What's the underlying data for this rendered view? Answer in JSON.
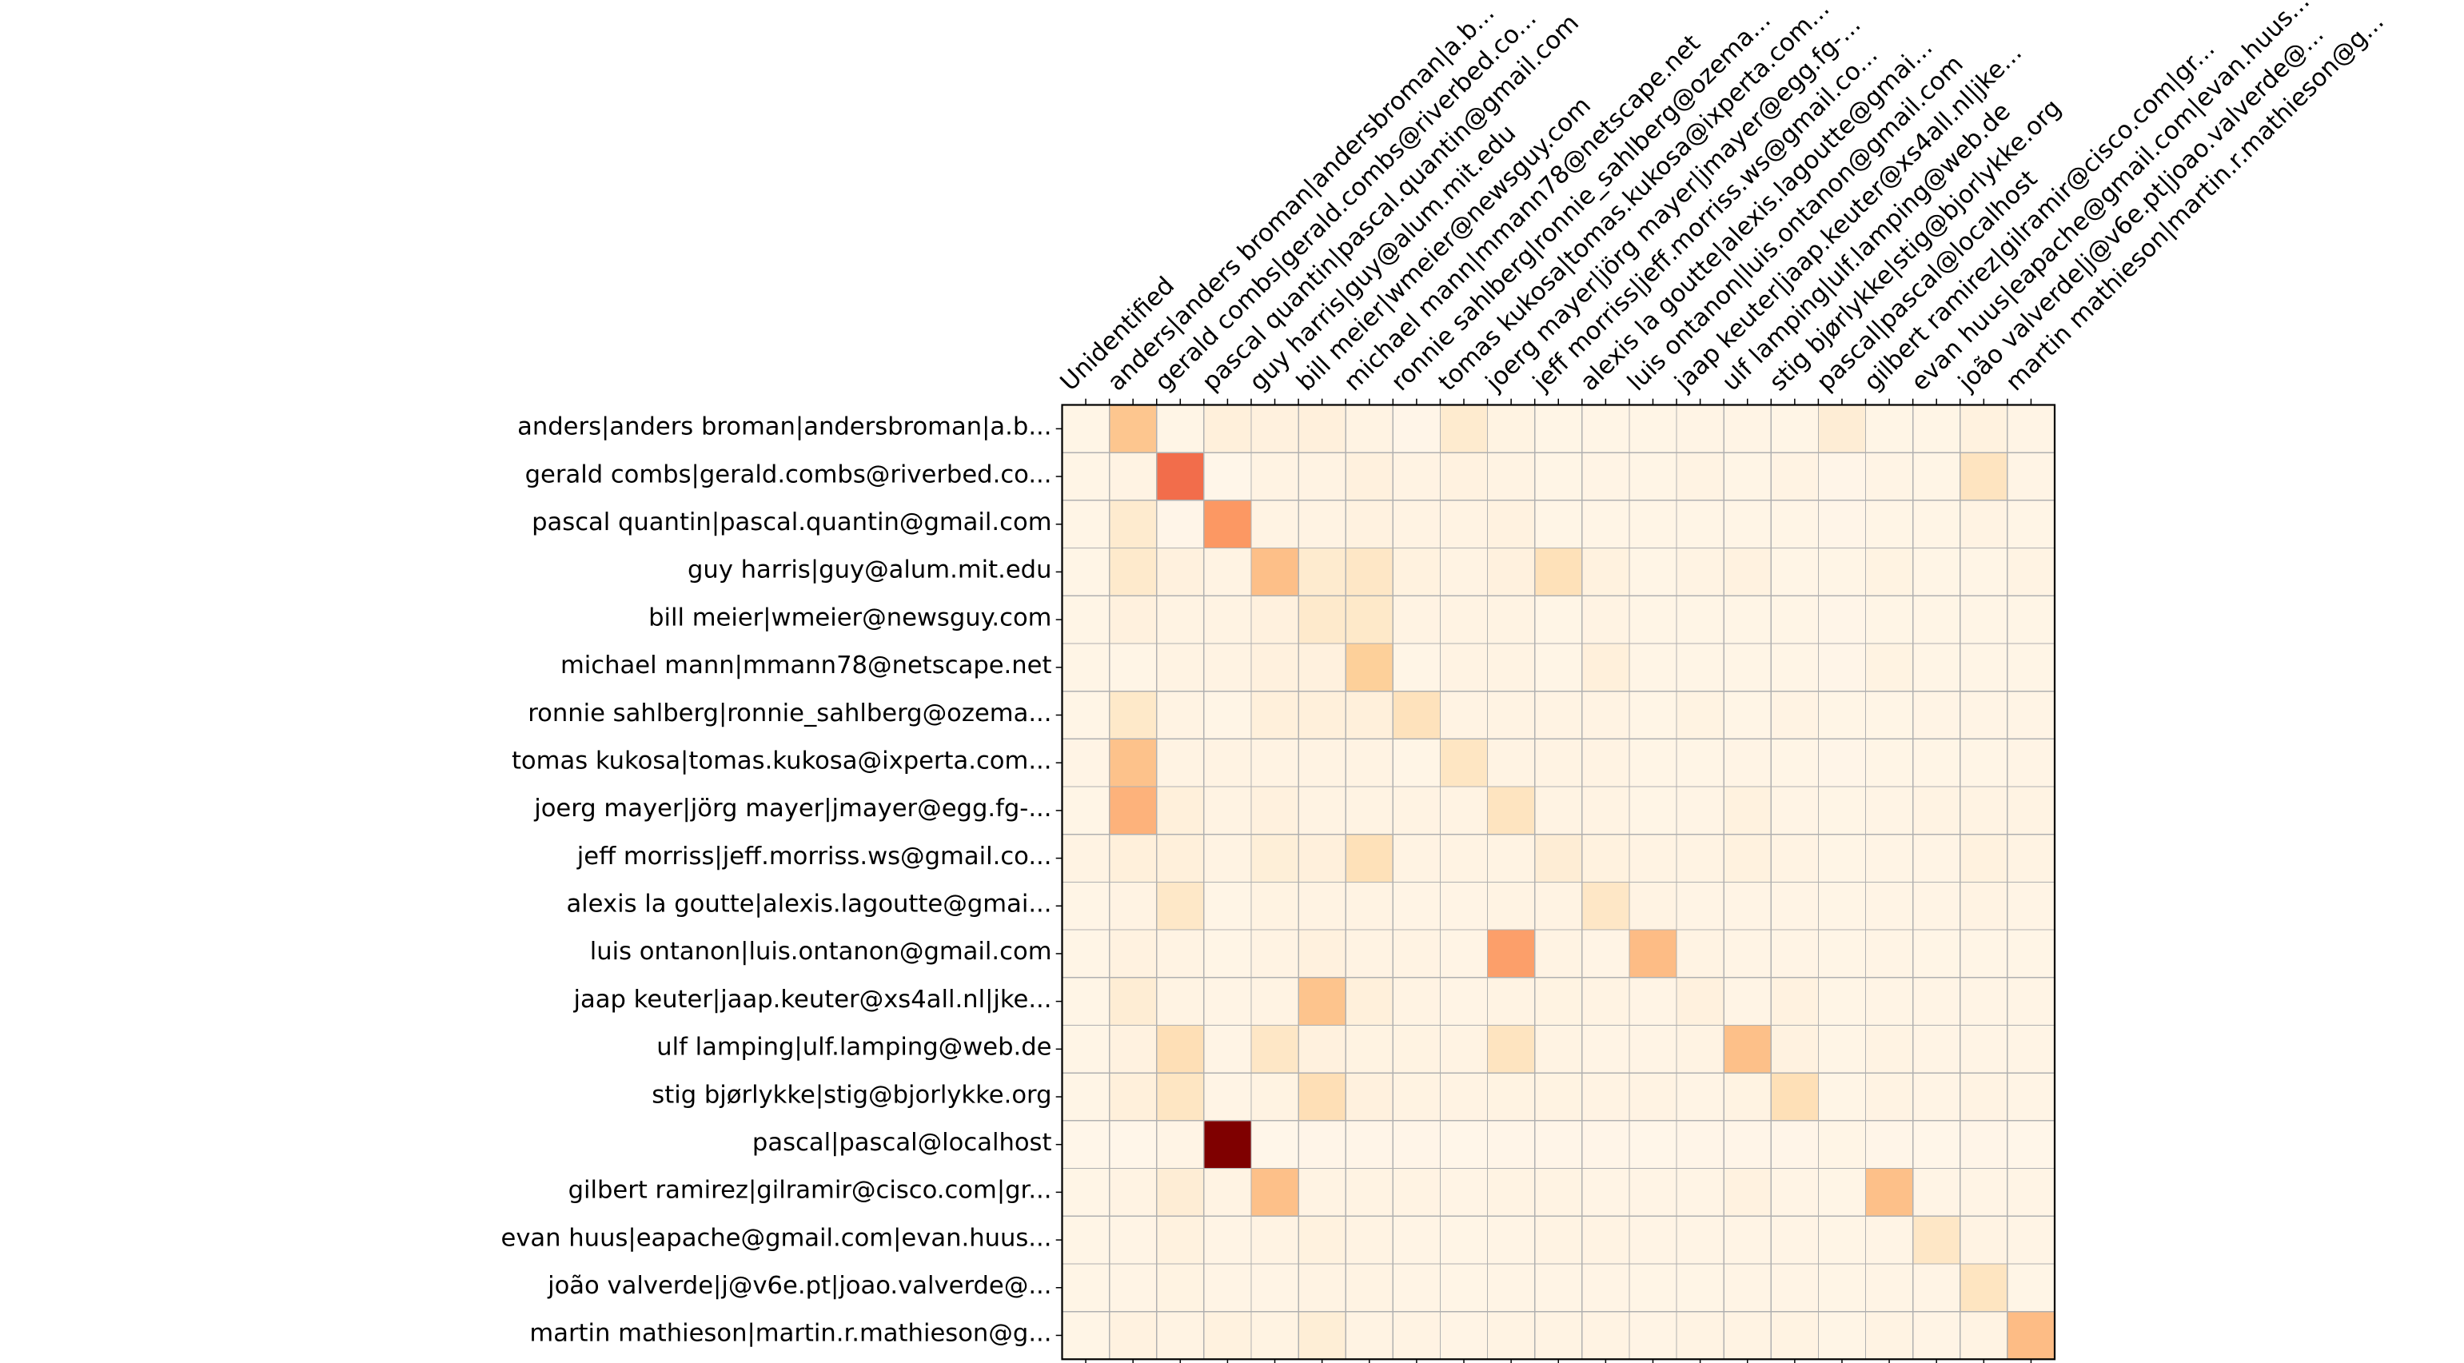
{
  "figure": {
    "background": "#ffffff"
  },
  "chart_data": {
    "type": "heatmap",
    "colormap": {
      "name": "OrRd",
      "stops": [
        "#fff7ec",
        "#fee8c8",
        "#fdd49e",
        "#fdbb84",
        "#fc8d59",
        "#ef6548",
        "#d7301f",
        "#b30000",
        "#7f0000"
      ]
    },
    "value_range": [
      0,
      1
    ],
    "grid_color": "#b0b0b0",
    "spine_color": "#000000",
    "tick_color": "#000000",
    "label_color": "#000000",
    "legend_position": "none",
    "columns": [
      "Unidentified",
      "anders|anders broman|andersbroman|a.b...",
      "gerald combs|gerald.combs@riverbed.co...",
      "pascal quantin|pascal.quantin@gmail.com",
      "guy harris|guy@alum.mit.edu",
      "bill meier|wmeier@newsguy.com",
      "michael mann|mmann78@netscape.net",
      "ronnie sahlberg|ronnie_sahlberg@ozema...",
      "tomas kukosa|tomas.kukosa@ixperta.com...",
      "joerg mayer|jörg mayer|jmayer@egg.fg-...",
      "jeff morriss|jeff.morriss.ws@gmail.co...",
      "alexis la goutte|alexis.lagoutte@gmai...",
      "luis ontanon|luis.ontanon@gmail.com",
      "jaap keuter|jaap.keuter@xs4all.nl|jke...",
      "ulf lamping|ulf.lamping@web.de",
      "stig bjørlykke|stig@bjorlykke.org",
      "pascal|pascal@localhost",
      "gilbert ramirez|gilramir@cisco.com|gr...",
      "evan huus|eapache@gmail.com|evan.huus...",
      "joão valverde|j@v6e.pt|joao.valverde@...",
      "martin mathieson|martin.r.mathieson@g..."
    ],
    "rows": [
      "anders|anders broman|andersbroman|a.b...",
      "gerald combs|gerald.combs@riverbed.co...",
      "pascal quantin|pascal.quantin@gmail.com",
      "guy harris|guy@alum.mit.edu",
      "bill meier|wmeier@newsguy.com",
      "michael mann|mmann78@netscape.net",
      "ronnie sahlberg|ronnie_sahlberg@ozema...",
      "tomas kukosa|tomas.kukosa@ixperta.com...",
      "joerg mayer|jörg mayer|jmayer@egg.fg-...",
      "jeff morriss|jeff.morriss.ws@gmail.co...",
      "alexis la goutte|alexis.lagoutte@gmai...",
      "luis ontanon|luis.ontanon@gmail.com",
      "jaap keuter|jaap.keuter@xs4all.nl|jke...",
      "ulf lamping|ulf.lamping@web.de",
      "stig bjørlykke|stig@bjorlykke.org",
      "pascal|pascal@localhost",
      "gilbert ramirez|gilramir@cisco.com|gr...",
      "evan huus|eapache@gmail.com|evan.huus...",
      "joão valverde|j@v6e.pt|joao.valverde@...",
      "martin mathieson|martin.r.mathieson@g..."
    ],
    "values": [
      [
        0.02,
        0.32,
        0.02,
        0.06,
        0.05,
        0.055,
        0.03,
        0.015,
        0.1,
        0.035,
        0.02,
        0.02,
        0.02,
        0.025,
        0.025,
        0.02,
        0.08,
        0.02,
        0.02,
        0.045,
        0.025
      ],
      [
        0.02,
        0.03,
        0.6,
        0.012,
        0.03,
        0.03,
        0.05,
        0.03,
        0.04,
        0.03,
        0.02,
        0.025,
        0.02,
        0.03,
        0.02,
        0.03,
        0.015,
        0.025,
        0.02,
        0.15,
        0.025
      ],
      [
        0.02,
        0.1,
        0.015,
        0.47,
        0.03,
        0.03,
        0.04,
        0.03,
        0.03,
        0.04,
        0.02,
        0.02,
        0.02,
        0.02,
        0.02,
        0.02,
        0.015,
        0.02,
        0.02,
        0.03,
        0.02
      ],
      [
        0.02,
        0.11,
        0.05,
        0.03,
        0.355,
        0.1,
        0.13,
        0.045,
        0.03,
        0.05,
        0.17,
        0.045,
        0.02,
        0.03,
        0.04,
        0.02,
        0.02,
        0.035,
        0.02,
        0.02,
        0.03
      ],
      [
        0.02,
        0.05,
        0.03,
        0.03,
        0.05,
        0.11,
        0.12,
        0.03,
        0.03,
        0.03,
        0.02,
        0.03,
        0.02,
        0.02,
        0.02,
        0.02,
        0.015,
        0.02,
        0.02,
        0.02,
        0.02
      ],
      [
        0.02,
        0.02,
        0.03,
        0.03,
        0.05,
        0.05,
        0.27,
        0.02,
        0.03,
        0.03,
        0.02,
        0.06,
        0.02,
        0.02,
        0.02,
        0.02,
        0.015,
        0.035,
        0.02,
        0.02,
        0.02
      ],
      [
        0.02,
        0.12,
        0.03,
        0.02,
        0.06,
        0.06,
        0.06,
        0.16,
        0.03,
        0.03,
        0.03,
        0.03,
        0.02,
        0.035,
        0.02,
        0.03,
        0.02,
        0.02,
        0.025,
        0.025,
        0.025
      ],
      [
        0.025,
        0.34,
        0.03,
        0.03,
        0.03,
        0.03,
        0.03,
        0.02,
        0.14,
        0.03,
        0.03,
        0.03,
        0.02,
        0.02,
        0.025,
        0.02,
        0.015,
        0.02,
        0.02,
        0.02,
        0.025
      ],
      [
        0.02,
        0.4,
        0.06,
        0.03,
        0.05,
        0.03,
        0.03,
        0.03,
        0.03,
        0.15,
        0.03,
        0.03,
        0.02,
        0.025,
        0.045,
        0.025,
        0.02,
        0.025,
        0.03,
        0.03,
        0.03
      ],
      [
        0.03,
        0.06,
        0.06,
        0.03,
        0.07,
        0.055,
        0.17,
        0.03,
        0.03,
        0.03,
        0.08,
        0.045,
        0.03,
        0.03,
        0.045,
        0.03,
        0.02,
        0.025,
        0.025,
        0.045,
        0.03
      ],
      [
        0.02,
        0.03,
        0.125,
        0.02,
        0.035,
        0.03,
        0.03,
        0.025,
        0.025,
        0.03,
        0.03,
        0.13,
        0.03,
        0.025,
        0.025,
        0.025,
        0.02,
        0.025,
        0.025,
        0.03,
        0.025
      ],
      [
        0.02,
        0.04,
        0.03,
        0.02,
        0.03,
        0.05,
        0.03,
        0.03,
        0.025,
        0.45,
        0.03,
        0.025,
        0.37,
        0.03,
        0.025,
        0.025,
        0.02,
        0.025,
        0.02,
        0.02,
        0.02
      ],
      [
        0.02,
        0.085,
        0.03,
        0.025,
        0.03,
        0.33,
        0.06,
        0.03,
        0.025,
        0.03,
        0.035,
        0.03,
        0.025,
        0.05,
        0.025,
        0.04,
        0.02,
        0.025,
        0.025,
        0.025,
        0.025
      ],
      [
        0.02,
        0.04,
        0.18,
        0.025,
        0.13,
        0.05,
        0.035,
        0.035,
        0.03,
        0.15,
        0.03,
        0.025,
        0.025,
        0.03,
        0.35,
        0.04,
        0.02,
        0.03,
        0.025,
        0.025,
        0.025
      ],
      [
        0.02,
        0.06,
        0.14,
        0.025,
        0.035,
        0.18,
        0.05,
        0.035,
        0.03,
        0.035,
        0.035,
        0.03,
        0.03,
        0.025,
        0.035,
        0.175,
        0.02,
        0.03,
        0.025,
        0.03,
        0.025
      ],
      [
        0.012,
        0.012,
        0.025,
        1.0,
        0.012,
        0.015,
        0.015,
        0.015,
        0.012,
        0.015,
        0.015,
        0.015,
        0.012,
        0.015,
        0.015,
        0.015,
        0.02,
        0.015,
        0.012,
        0.015,
        0.012
      ],
      [
        0.02,
        0.03,
        0.08,
        0.03,
        0.35,
        0.03,
        0.03,
        0.03,
        0.025,
        0.03,
        0.03,
        0.025,
        0.025,
        0.025,
        0.04,
        0.025,
        0.02,
        0.35,
        0.025,
        0.025,
        0.025
      ],
      [
        0.02,
        0.025,
        0.045,
        0.025,
        0.03,
        0.045,
        0.03,
        0.025,
        0.02,
        0.025,
        0.03,
        0.03,
        0.025,
        0.025,
        0.025,
        0.025,
        0.02,
        0.025,
        0.13,
        0.03,
        0.025
      ],
      [
        0.02,
        0.025,
        0.035,
        0.025,
        0.025,
        0.03,
        0.03,
        0.025,
        0.02,
        0.025,
        0.025,
        0.025,
        0.02,
        0.02,
        0.025,
        0.025,
        0.02,
        0.025,
        0.025,
        0.145,
        0.02
      ],
      [
        0.02,
        0.04,
        0.03,
        0.045,
        0.035,
        0.075,
        0.03,
        0.03,
        0.025,
        0.03,
        0.03,
        0.03,
        0.025,
        0.03,
        0.03,
        0.035,
        0.02,
        0.03,
        0.025,
        0.03,
        0.37
      ]
    ]
  }
}
